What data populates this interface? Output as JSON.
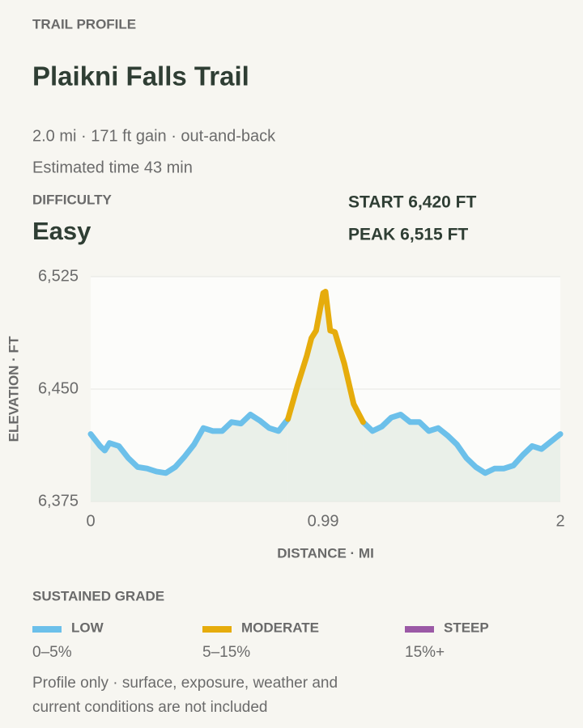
{
  "header": {
    "eyebrow": "TRAIL PROFILE",
    "title": "Plaikni Falls Trail",
    "stats": "2.0 mi · 171 ft gain · out-and-back",
    "time": "Estimated time 43 min",
    "difficulty_label": "DIFFICULTY",
    "difficulty": "Easy",
    "start": "START 6,420 FT",
    "peak": "PEAK 6,515 FT"
  },
  "chart_data": {
    "type": "line",
    "y_label": "ELEVATION · FT",
    "x_label": "DISTANCE · MI",
    "xlim": [
      0,
      2
    ],
    "xticks": [
      0,
      0.99,
      2
    ],
    "ylim": [
      6375,
      6525
    ],
    "yticks": [
      {
        "value": 6525,
        "label": "6,525"
      },
      {
        "value": 6450,
        "label": "6,450"
      },
      {
        "value": 6375,
        "label": "6,375"
      }
    ],
    "grid": true,
    "legend_title": "SUSTAINED GRADE",
    "grades": [
      {
        "name": "LOW",
        "range": "0–5%",
        "color": "#6cc0ea",
        "segments": [
          {
            "x": [
              0,
              0.04,
              0.06,
              0.08,
              0.12,
              0.16,
              0.2,
              0.24,
              0.28,
              0.32,
              0.36,
              0.4,
              0.44,
              0.48,
              0.52,
              0.56,
              0.6,
              0.64,
              0.68,
              0.72,
              0.76,
              0.8,
              0.84
            ],
            "values": [
              6420,
              6412,
              6409,
              6414,
              6412,
              6404,
              6398,
              6397,
              6395,
              6394,
              6398,
              6405,
              6413,
              6424,
              6422,
              6422,
              6428,
              6427,
              6433,
              6429,
              6424,
              6422,
              6430
            ]
          },
          {
            "x": [
              1.16,
              1.2,
              1.24,
              1.28,
              1.32,
              1.36,
              1.4,
              1.44,
              1.48,
              1.52,
              1.56,
              1.6,
              1.64,
              1.68,
              1.72,
              1.76,
              1.8,
              1.84,
              1.88,
              1.92,
              1.96,
              2
            ],
            "values": [
              6428,
              6422,
              6425,
              6431,
              6433,
              6428,
              6428,
              6422,
              6424,
              6419,
              6413,
              6404,
              6398,
              6394,
              6397,
              6397,
              6399,
              6406,
              6412,
              6410,
              6415,
              6420
            ]
          }
        ]
      },
      {
        "name": "MODERATE",
        "range": "5–15%",
        "color": "#e6ac0c",
        "segments": [
          {
            "x": [
              0.84,
              0.88,
              0.92,
              0.94,
              0.96,
              0.99,
              1,
              1.02,
              1.04,
              1.08,
              1.12,
              1.16
            ],
            "values": [
              6430,
              6452,
              6472,
              6484,
              6489,
              6514,
              6515,
              6489,
              6488,
              6467,
              6440,
              6428
            ]
          }
        ]
      },
      {
        "name": "STEEP",
        "range": "15%+",
        "color": "#9b59a6",
        "segments": []
      }
    ]
  },
  "footer": {
    "note": [
      "Profile only · surface, exposure, weather and",
      "current conditions are not included"
    ]
  }
}
